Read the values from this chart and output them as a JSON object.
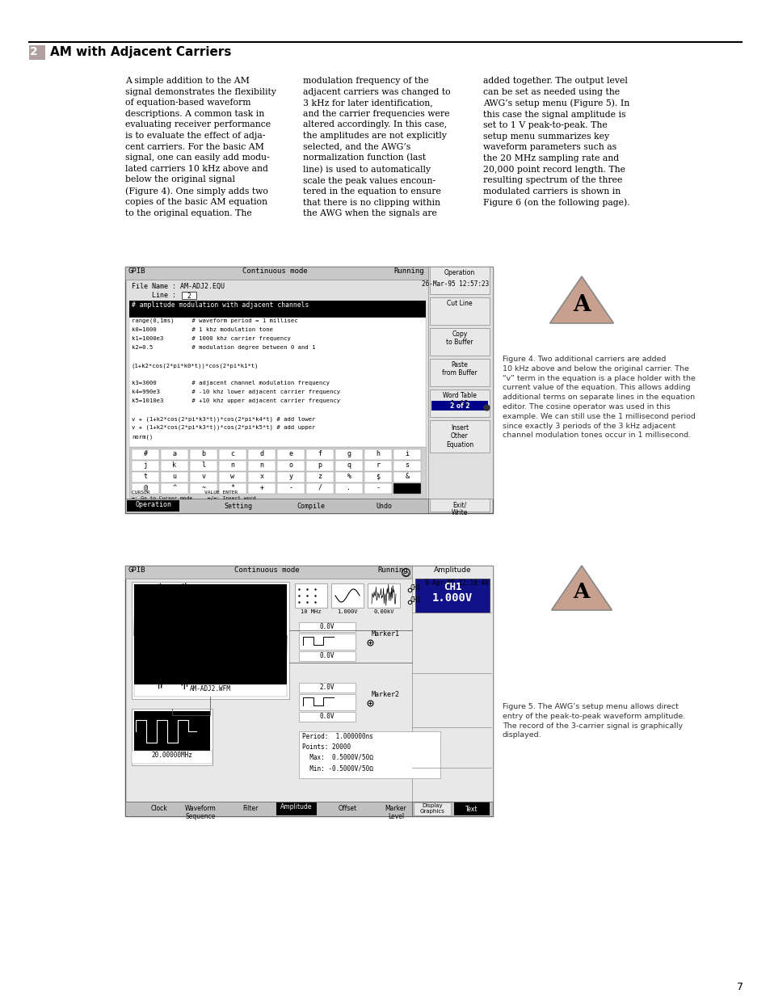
{
  "page_number": "7",
  "section_number": "2",
  "section_title": "AM with Adjacent Carriers",
  "section_box_color": "#b0a0a0",
  "body_text_col1": "A simple addition to the AM\nsignal demonstrates the flexibility\nof equation-based waveform\ndescriptions. A common task in\nevaluating receiver performance\nis to evaluate the effect of adja-\ncent carriers. For the basic AM\nsignal, one can easily add modu-\nlated carriers 10 kHz above and\nbelow the original signal\n(Figure 4). One simply adds two\ncopies of the basic AM equation\nto the original equation. The",
  "body_text_col2": "modulation frequency of the\nadjacent carriers was changed to\n3 kHz for later identification,\nand the carrier frequencies were\naltered accordingly. In this case,\nthe amplitudes are not explicitly\nselected, and the AWG’s\nnormalization function (last\nline) is used to automatically\nscale the peak values encoun-\ntered in the equation to ensure\nthat there is no clipping within\nthe AWG when the signals are",
  "body_text_col3": "added together. The output level\ncan be set as needed using the\nAWG’s setup menu (Figure 5). In\nthis case the signal amplitude is\nset to 1 V peak-to-peak. The\nsetup menu summarizes key\nwaveform parameters such as\nthe 20 MHz sampling rate and\n20,000 point record length. The\nresulting spectrum of the three\nmodulated carriers is shown in\nFigure 6 (on the following page).",
  "fig4_caption": "Figure 4. Two additional carriers are added\n10 kHz above and below the original carrier. The\n“v” term in the equation is a place holder with the\ncurrent value of the equation. This allows adding\nadditional terms on separate lines in the equation\neditor. The cosine operator was used in this\nexample. We can still use the 1 millisecond period\nsince exactly 3 periods of the 3 kHz adjacent\nchannel modulation tones occur in 1 millisecond.",
  "fig5_caption": "Figure 5. The AWG’s setup menu allows direct\nentry of the peak-to-peak waveform amplitude.\nThe record of the 3-carrier signal is graphically\ndisplayed.",
  "bg_color": "#ffffff"
}
